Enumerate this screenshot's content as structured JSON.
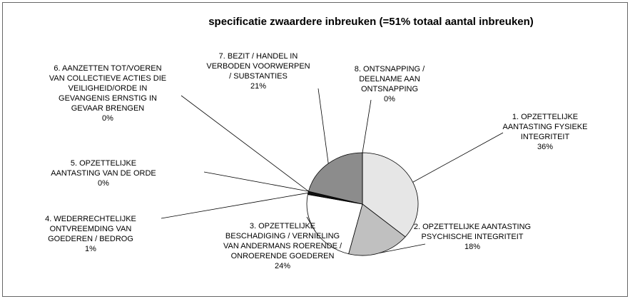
{
  "chart_data": {
    "type": "pie",
    "title": "specificatie zwaardere inbreuken (=51% totaal aantal inbreuken)",
    "categories": [
      "1. OPZETTELIJKE AANTASTING FYSIEKE INTEGRITEIT",
      "2. OPZETTELIJKE AANTASTING PSYCHISCHE INTEGRITEIT",
      "3. OPZETTELIJKE BESCHADIGING / VERNIELING VAN ANDERMANS ROERENDE / ONROERENDE GOEDEREN",
      "4. WEDERRECHTELIJKE ONTVREEMDING VAN GOEDEREN / BEDROG",
      "5. OPZETTELIJKE AANTASTING VAN DE ORDE",
      "6. AANZETTEN TOT/VOEREN VAN COLLECTIEVE ACTIES DIE VEILIGHEID/ORDE IN GEVANGENIS ERNSTIG IN GEVAAR BRENGEN",
      "7. BEZIT / HANDEL IN VERBODEN VOORWERPEN / SUBSTANTIES",
      "8. ONTSNAPPING / DEELNAME AAN ONTSNAPPING"
    ],
    "values": [
      36,
      18,
      24,
      1,
      0,
      0,
      21,
      0
    ],
    "value_labels": [
      "36%",
      "18%",
      "24%",
      "1%",
      "0%",
      "0%",
      "21%",
      "0%"
    ],
    "colors": [
      "#e6e6e6",
      "#c0c0c0",
      "#ffffff",
      "#111111",
      "#666666",
      "#444444",
      "#8c8c8c",
      "#aaaaaa"
    ]
  }
}
